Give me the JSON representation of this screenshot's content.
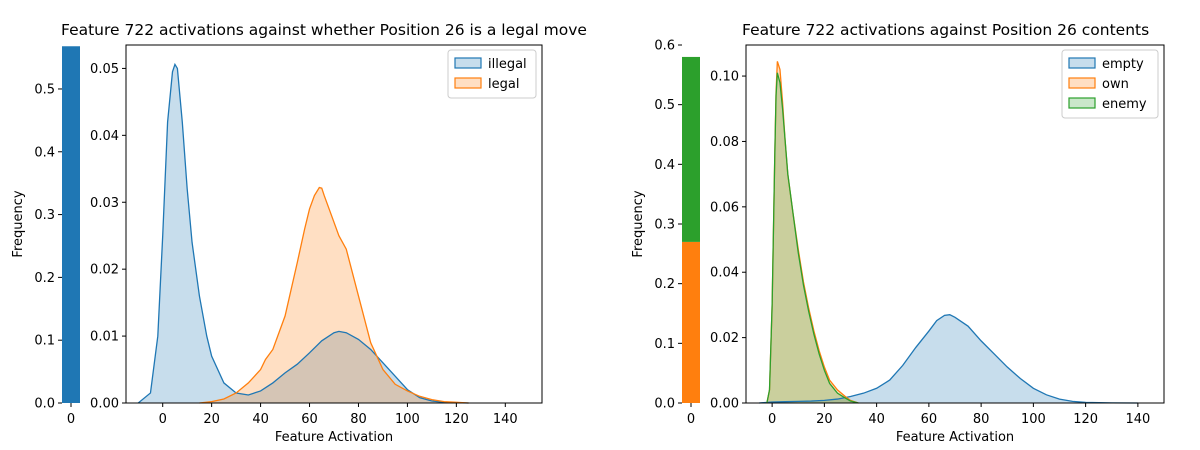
{
  "chart_data": [
    {
      "type": "area",
      "title": "Feature 722 activations against whether Position 26 is a legal move",
      "xlabel": "Feature Activation",
      "ylabel": "Frequency",
      "xlim": [
        -15,
        155
      ],
      "ylim": [
        0,
        0.0535
      ],
      "x_ticks": [
        0,
        20,
        40,
        60,
        80,
        100,
        120,
        140
      ],
      "y_ticks": [
        0.0,
        0.01,
        0.02,
        0.03,
        0.04,
        0.05
      ],
      "legend_position": "top-right",
      "series": [
        {
          "name": "illegal",
          "color": "#1f77b4",
          "x": [
            -10,
            -5,
            -2,
            0,
            2,
            4,
            5,
            6,
            8,
            10,
            12,
            15,
            18,
            20,
            25,
            30,
            35,
            40,
            45,
            50,
            55,
            60,
            65,
            70,
            72,
            75,
            80,
            85,
            90,
            95,
            100,
            105,
            110,
            115,
            120,
            125
          ],
          "y": [
            0,
            0.0015,
            0.01,
            0.025,
            0.042,
            0.0495,
            0.0506,
            0.05,
            0.042,
            0.032,
            0.024,
            0.016,
            0.01,
            0.007,
            0.003,
            0.0015,
            0.0012,
            0.0018,
            0.003,
            0.0045,
            0.0058,
            0.0075,
            0.0093,
            0.0105,
            0.0107,
            0.0105,
            0.0095,
            0.008,
            0.006,
            0.004,
            0.002,
            0.0008,
            0.0003,
            0.0001,
            4e-05,
            0
          ]
        },
        {
          "name": "legal",
          "color": "#ff7f0e",
          "x": [
            15,
            20,
            25,
            30,
            35,
            40,
            42,
            45,
            50,
            55,
            58,
            60,
            62,
            64,
            65,
            66,
            68,
            70,
            72,
            75,
            80,
            85,
            90,
            95,
            100,
            105,
            110,
            115,
            120,
            125
          ],
          "y": [
            0,
            0.0002,
            0.0006,
            0.0015,
            0.003,
            0.005,
            0.0065,
            0.008,
            0.013,
            0.021,
            0.026,
            0.029,
            0.031,
            0.0322,
            0.0321,
            0.031,
            0.029,
            0.027,
            0.025,
            0.023,
            0.016,
            0.009,
            0.005,
            0.0028,
            0.0018,
            0.001,
            0.0005,
            0.0002,
            0.0001,
            0
          ]
        }
      ]
    },
    {
      "type": "area",
      "title": "Feature 722 activations against Position 26 contents",
      "xlabel": "Feature Activation",
      "ylabel": "Frequency",
      "xlim": [
        -10,
        150
      ],
      "ylim": [
        0,
        0.1095
      ],
      "x_ticks": [
        0,
        20,
        40,
        60,
        80,
        100,
        120,
        140
      ],
      "y_ticks": [
        0.0,
        0.02,
        0.04,
        0.06,
        0.08,
        0.1
      ],
      "legend_position": "top-right",
      "series": [
        {
          "name": "empty",
          "color": "#1f77b4",
          "x": [
            -5,
            0,
            5,
            10,
            15,
            20,
            25,
            30,
            35,
            40,
            45,
            50,
            55,
            60,
            63,
            66,
            68,
            70,
            75,
            80,
            85,
            90,
            95,
            100,
            105,
            110,
            115,
            120,
            130,
            140
          ],
          "y": [
            0,
            0.0003,
            0.0004,
            0.0005,
            0.0006,
            0.0008,
            0.0012,
            0.002,
            0.003,
            0.0045,
            0.007,
            0.0115,
            0.017,
            0.022,
            0.0252,
            0.0268,
            0.027,
            0.0262,
            0.0235,
            0.019,
            0.015,
            0.011,
            0.0075,
            0.0045,
            0.0025,
            0.0012,
            0.0005,
            0.0002,
            5e-05,
            0
          ]
        },
        {
          "name": "own",
          "color": "#ff7f0e",
          "x": [
            -2,
            -1,
            0,
            1,
            1.5,
            2,
            3,
            4,
            5,
            6,
            8,
            10,
            12,
            14,
            16,
            18,
            20,
            22,
            25,
            28,
            30,
            33
          ],
          "y": [
            0,
            0.004,
            0.03,
            0.075,
            0.095,
            0.1045,
            0.102,
            0.092,
            0.08,
            0.07,
            0.058,
            0.047,
            0.037,
            0.029,
            0.022,
            0.016,
            0.011,
            0.007,
            0.004,
            0.002,
            0.0008,
            0
          ]
        },
        {
          "name": "enemy",
          "color": "#2ca02c",
          "x": [
            -2,
            -1,
            0,
            1,
            1.5,
            2,
            3,
            4,
            5,
            6,
            8,
            10,
            12,
            14,
            16,
            18,
            20,
            22,
            25,
            28,
            30,
            33
          ],
          "y": [
            0,
            0.004,
            0.03,
            0.075,
            0.094,
            0.101,
            0.098,
            0.09,
            0.08,
            0.07,
            0.058,
            0.046,
            0.036,
            0.028,
            0.021,
            0.015,
            0.01,
            0.006,
            0.003,
            0.0015,
            0.0006,
            0
          ]
        }
      ]
    }
  ],
  "marginals": [
    {
      "ylim": [
        0,
        0.57
      ],
      "y_ticks": [
        0.0,
        0.1,
        0.2,
        0.3,
        0.4,
        0.5
      ],
      "x_tick": "0",
      "segments": [
        {
          "name": "illegal",
          "value": 0.568,
          "color": "#1f77b4"
        }
      ]
    },
    {
      "ylim": [
        0,
        0.6
      ],
      "y_ticks": [
        0.0,
        0.1,
        0.2,
        0.3,
        0.4,
        0.5,
        0.6
      ],
      "x_tick": "0",
      "segments": [
        {
          "name": "own",
          "value": 0.27,
          "color": "#ff7f0e"
        },
        {
          "name": "enemy",
          "value": 0.31,
          "color": "#2ca02c"
        }
      ]
    }
  ]
}
